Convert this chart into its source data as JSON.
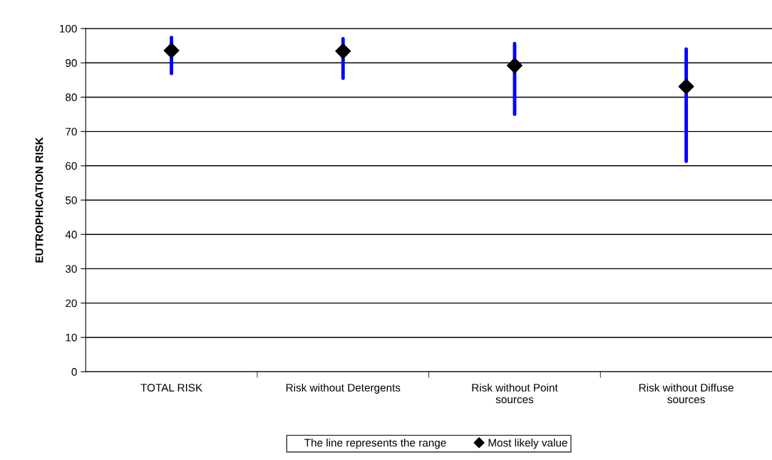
{
  "chart_data": {
    "type": "scatter",
    "ylabel": "EUTROPHICATION RISK",
    "categories": [
      "TOTAL RISK",
      "Risk without Detergents",
      "Risk without Point\nsources",
      "Risk without Diffuse\nsources"
    ],
    "series": [
      {
        "name": "Most likely value",
        "color": "#000000",
        "values": [
          93.6,
          93.4,
          89.2,
          83.1
        ],
        "errors": [
          [
            86.9,
            97.4
          ],
          [
            85.5,
            97.0
          ],
          [
            75.0,
            95.6
          ],
          [
            61.3,
            94.0
          ]
        ]
      }
    ],
    "annotations": [
      "The line represents the range"
    ],
    "ylim": [
      0,
      100
    ],
    "yticks": [
      0,
      10,
      20,
      30,
      40,
      50,
      60,
      70,
      80,
      90,
      100
    ],
    "grid": "y",
    "legend": "bottom",
    "marker": "diamond"
  }
}
